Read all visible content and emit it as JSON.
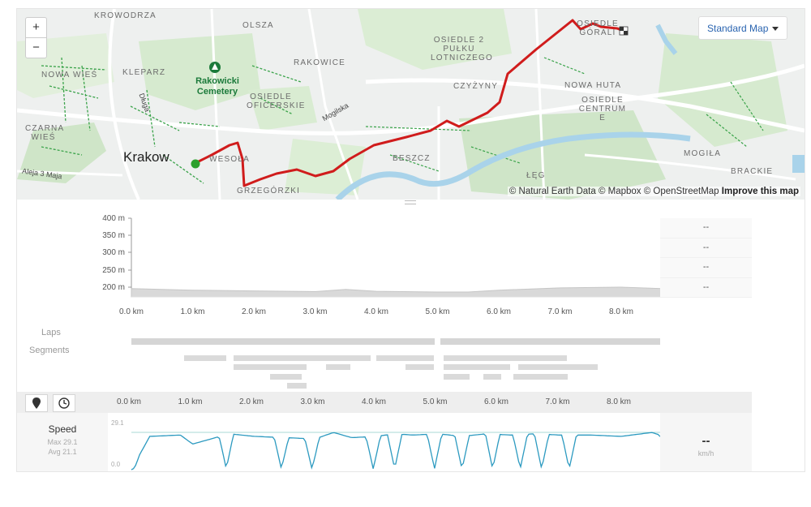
{
  "map": {
    "zoom_in": "+",
    "zoom_out": "−",
    "style_selector": "Standard Map",
    "attribution": "© Natural Earth Data © Mapbox © OpenStreetMap",
    "attribution_link": "Improve this map",
    "labels": {
      "krowodrza": "KROWODRZA",
      "olsza": "OLSZA",
      "nowa_wies": "NOWA WIEŚ",
      "kleparz": "KLEPARZ",
      "rakowicki": "Rakowicki Cemetery",
      "rakowice": "RAKOWICE",
      "osiedle_2pulku": "OSIEDLE 2 PUŁKU LOTNICZEGO",
      "osiedle_gorali": "OSIEDLE GÓRALI",
      "czyzyny": "CZYŻYNY",
      "nowa_huta": "NOWA HUTA",
      "osiedle_centrum": "OSIEDLE CENTRUM E",
      "osiedle_oficerskie": "OSIEDLE OFICERSKIE",
      "mogilska": "Mogilska",
      "dluga": "Długa",
      "czarna_wies": "CZARNA WIEŚ",
      "krakow": "Krakow",
      "wesola": "WESOŁA",
      "aleja": "Aleja 3 Maja",
      "beszcz": "BESZCZ",
      "grzegorzki": "GRZEGÓRZKI",
      "mogila": "MOGIŁA",
      "leg": "ŁĘG",
      "brackie": "BRACKIE"
    }
  },
  "elevation": {
    "y_ticks": [
      "400 m",
      "350 m",
      "300 m",
      "250 m",
      "200 m"
    ],
    "x_ticks": [
      "0.0 km",
      "1.0 km",
      "2.0 km",
      "3.0 km",
      "4.0 km",
      "5.0 km",
      "6.0 km",
      "7.0 km",
      "8.0 km"
    ],
    "side_values": [
      "--",
      "--",
      "--",
      "--"
    ],
    "laps_label": "Laps",
    "segments_label": "Segments"
  },
  "speed": {
    "title": "Speed",
    "max": "Max 29.1",
    "avg": "Avg 21.1",
    "y_top": "29.1",
    "y_bottom": "0.0",
    "current_value": "--",
    "unit": "km/h",
    "x_ticks": [
      "0.0 km",
      "1.0 km",
      "2.0 km",
      "3.0 km",
      "4.0 km",
      "5.0 km",
      "6.0 km",
      "7.0 km",
      "8.0 km"
    ]
  },
  "chart_data": [
    {
      "type": "area",
      "x": [
        0,
        1,
        2,
        3,
        3.5,
        4,
        5,
        5.5,
        6,
        7,
        8,
        8.7
      ],
      "y": [
        212,
        208,
        206,
        204,
        210,
        205,
        203,
        203,
        208,
        214,
        216,
        212
      ],
      "ylim": [
        190,
        400
      ],
      "xlabel": "",
      "ylabel": ""
    },
    {
      "type": "line",
      "x": [
        0.0,
        0.3,
        0.8,
        1.0,
        1.6,
        2.0,
        2.5,
        3.0,
        3.3,
        3.6,
        4.0,
        4.3,
        4.6,
        5.0,
        5.4,
        5.8,
        6.2,
        6.6,
        7.0,
        7.5,
        8.0,
        8.5,
        8.7
      ],
      "y": [
        0,
        26,
        27,
        20,
        28,
        26,
        25,
        24,
        29,
        25,
        26,
        28,
        27,
        28,
        26,
        28,
        27,
        28,
        27,
        27,
        26,
        29,
        26
      ],
      "ylim": [
        0,
        29.1
      ],
      "xlabel": "",
      "ylabel": ""
    }
  ]
}
